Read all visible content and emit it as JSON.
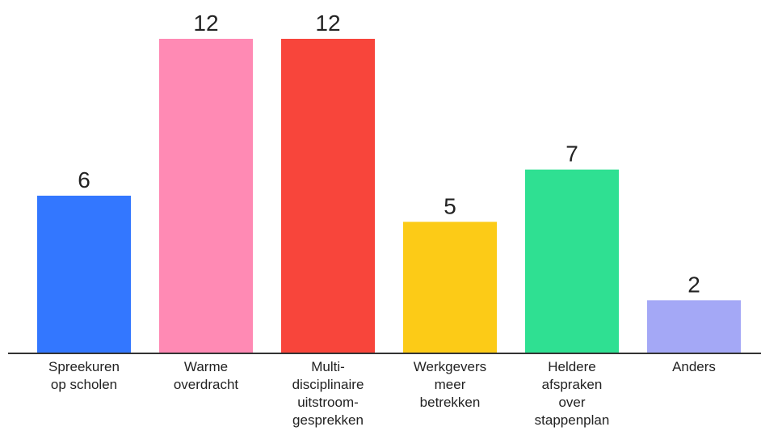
{
  "chart_data": {
    "type": "bar",
    "categories": [
      [
        "Spreekuren",
        "op scholen"
      ],
      [
        "Warme",
        "overdracht"
      ],
      [
        "Multi-",
        "disciplinaire",
        "uitstroom-",
        "gesprekken"
      ],
      [
        "Werkgevers",
        "meer",
        "betrekken"
      ],
      [
        "Heldere",
        "afspraken",
        "over",
        "stappenplan"
      ],
      [
        "Anders"
      ]
    ],
    "values": [
      6,
      12,
      12,
      5,
      7,
      2
    ],
    "colors": [
      "#3377ff",
      "#ff8ab4",
      "#f8453b",
      "#fccb17",
      "#2fe092",
      "#a4a8f6"
    ],
    "ylim": [
      0,
      12
    ],
    "grid": false,
    "legend": "none"
  }
}
